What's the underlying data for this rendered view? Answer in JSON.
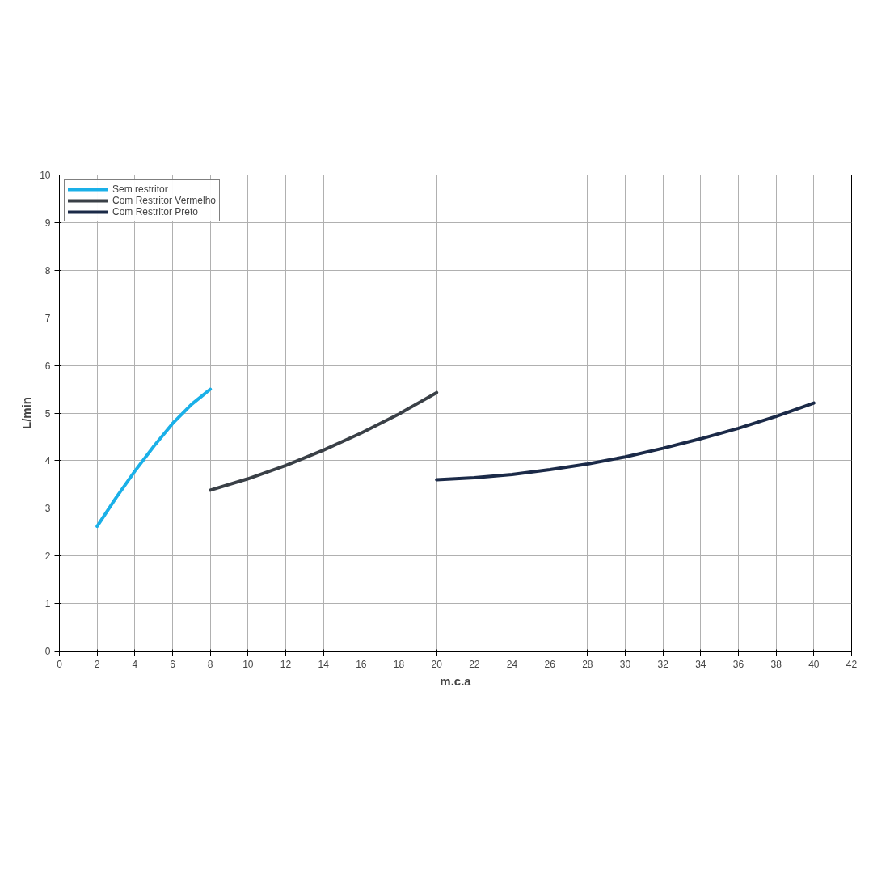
{
  "chart_data": {
    "type": "line",
    "xlabel": "m.c.a",
    "ylabel": "L/min",
    "xlim": [
      0,
      42
    ],
    "xticks": [
      0,
      2,
      4,
      6,
      8,
      10,
      12,
      14,
      16,
      18,
      20,
      22,
      24,
      26,
      28,
      30,
      32,
      34,
      36,
      38,
      40,
      42
    ],
    "ylim": [
      0,
      10
    ],
    "yticks": [
      0,
      1,
      2,
      3,
      4,
      5,
      6,
      7,
      8,
      9,
      10
    ],
    "grid": true,
    "legend": "top left",
    "marker": "none",
    "line_style": "solid",
    "series": [
      {
        "name": "Sem restritor",
        "color": "#1ab0e8",
        "x": [
          2,
          3,
          4,
          5,
          6,
          7,
          8
        ],
        "values": [
          2.62,
          3.22,
          3.78,
          4.3,
          4.78,
          5.18,
          5.5
        ]
      },
      {
        "name": "Com Restritor Vermelho",
        "color": "#3a4047",
        "x": [
          8,
          10,
          12,
          14,
          16,
          18,
          20
        ],
        "values": [
          3.38,
          3.62,
          3.9,
          4.22,
          4.58,
          4.98,
          5.43
        ]
      },
      {
        "name": "Com Restritor Preto",
        "color": "#1b2a48",
        "x": [
          20,
          22,
          24,
          26,
          28,
          30,
          32,
          34,
          36,
          38,
          40
        ],
        "values": [
          3.6,
          3.64,
          3.71,
          3.81,
          3.93,
          4.08,
          4.26,
          4.46,
          4.68,
          4.93,
          5.21
        ]
      }
    ]
  }
}
